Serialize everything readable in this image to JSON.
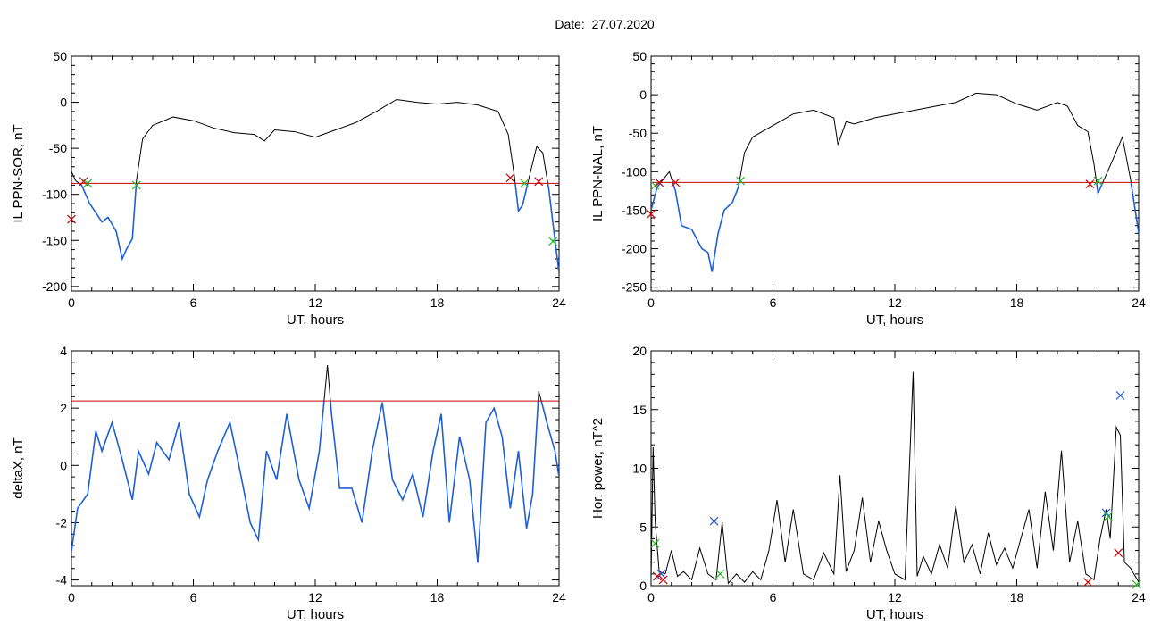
{
  "header": {
    "date_label": "Date:  27.07.2020"
  },
  "colors": {
    "data": "#000000",
    "threshold": "#cc0000",
    "below_threshold": "#1f5fd6",
    "marker_red": "#cc0000",
    "marker_green": "#22bb22",
    "marker_blue": "#1f5fd6"
  },
  "chart_data": [
    {
      "type": "line",
      "ylabel": "IL PPN-SOR, nT",
      "xlabel": "UT, hours",
      "xlim": [
        0,
        24
      ],
      "ylim": [
        -205,
        50
      ],
      "xticks": [
        0,
        6,
        12,
        18,
        24
      ],
      "yticks": [
        -200,
        -150,
        -100,
        -50,
        0,
        50
      ],
      "threshold": -88,
      "series": [
        {
          "color": "#000000",
          "x": [
            0,
            0.2,
            0.5,
            0.9,
            1.2,
            1.5,
            1.8,
            2.2,
            2.5,
            2.7,
            3.0,
            3.2,
            3.5,
            4.0,
            5.0,
            6.0,
            7.0,
            8.0,
            9.0,
            9.5,
            10.0,
            11.0,
            12.0,
            13.0,
            14.0,
            15.0,
            16.0,
            17.0,
            18.0,
            19.0,
            20.0,
            21.0,
            21.5,
            21.8,
            22.0,
            22.2,
            22.6,
            22.9,
            23.2,
            23.5,
            23.8,
            24.0
          ],
          "y": [
            -75,
            -85,
            -90,
            -110,
            -120,
            -130,
            -125,
            -140,
            -170,
            -160,
            -148,
            -85,
            -40,
            -25,
            -16,
            -20,
            -28,
            -33,
            -35,
            -42,
            -30,
            -32,
            -38,
            -30,
            -22,
            -10,
            3,
            0,
            -2,
            0,
            -3,
            -10,
            -35,
            -80,
            -118,
            -112,
            -75,
            -48,
            -55,
            -95,
            -150,
            -185
          ]
        }
      ],
      "markers": [
        {
          "x": 0.0,
          "y": -127,
          "color": "#cc0000"
        },
        {
          "x": 0.6,
          "y": -86,
          "color": "#cc0000"
        },
        {
          "x": 0.8,
          "y": -88,
          "color": "#22bb22"
        },
        {
          "x": 3.2,
          "y": -90,
          "color": "#22bb22"
        },
        {
          "x": 21.6,
          "y": -82,
          "color": "#cc0000"
        },
        {
          "x": 22.3,
          "y": -88,
          "color": "#22bb22"
        },
        {
          "x": 23.0,
          "y": -86,
          "color": "#cc0000"
        },
        {
          "x": 23.7,
          "y": -151,
          "color": "#22bb22"
        }
      ]
    },
    {
      "type": "line",
      "ylabel": "IL PPN-NAL, nT",
      "xlabel": "UT, hours",
      "xlim": [
        0,
        24
      ],
      "ylim": [
        -255,
        50
      ],
      "xticks": [
        0,
        6,
        12,
        18,
        24
      ],
      "yticks": [
        -250,
        -200,
        -150,
        -100,
        -50,
        0,
        50
      ],
      "threshold": -114,
      "series": [
        {
          "color": "#000000",
          "x": [
            0,
            0.3,
            0.6,
            0.9,
            1.2,
            1.5,
            2.0,
            2.5,
            2.8,
            3.0,
            3.3,
            3.6,
            4.0,
            4.3,
            4.6,
            5.0,
            6.0,
            7.0,
            8.0,
            9.0,
            9.2,
            9.6,
            10.0,
            11.0,
            12.0,
            13.0,
            14.0,
            15.0,
            16.0,
            17.0,
            18.0,
            19.0,
            20.0,
            20.5,
            21.0,
            21.5,
            21.8,
            22.0,
            22.3,
            22.8,
            23.2,
            23.6,
            24.0
          ],
          "y": [
            -150,
            -120,
            -110,
            -100,
            -125,
            -170,
            -175,
            -200,
            -205,
            -230,
            -180,
            -150,
            -140,
            -120,
            -75,
            -55,
            -40,
            -25,
            -20,
            -30,
            -65,
            -35,
            -38,
            -30,
            -25,
            -20,
            -15,
            -10,
            2,
            0,
            -12,
            -20,
            -10,
            -15,
            -40,
            -48,
            -90,
            -128,
            -110,
            -80,
            -55,
            -110,
            -180
          ]
        }
      ],
      "markers": [
        {
          "x": 0.0,
          "y": -155,
          "color": "#cc0000"
        },
        {
          "x": 0.2,
          "y": -118,
          "color": "#22bb22"
        },
        {
          "x": 0.4,
          "y": -114,
          "color": "#cc0000"
        },
        {
          "x": 1.2,
          "y": -114,
          "color": "#cc0000"
        },
        {
          "x": 4.4,
          "y": -112,
          "color": "#22bb22"
        },
        {
          "x": 21.6,
          "y": -116,
          "color": "#cc0000"
        },
        {
          "x": 22.0,
          "y": -112,
          "color": "#22bb22"
        }
      ]
    },
    {
      "type": "line",
      "ylabel": "deltaX, nT",
      "xlabel": "UT, hours",
      "xlim": [
        0,
        24
      ],
      "ylim": [
        -4.2,
        4
      ],
      "xticks": [
        0,
        6,
        12,
        18,
        24
      ],
      "yticks": [
        -4,
        -2,
        0,
        2,
        4
      ],
      "threshold": 2.25,
      "series": [
        {
          "color": "#000000",
          "x": [
            0,
            0.3,
            0.8,
            1.2,
            1.5,
            2.0,
            2.5,
            3.0,
            3.3,
            3.8,
            4.2,
            4.8,
            5.3,
            5.8,
            6.3,
            6.7,
            7.2,
            7.8,
            8.3,
            8.8,
            9.2,
            9.6,
            10.1,
            10.6,
            11.2,
            11.7,
            12.2,
            12.6,
            12.8,
            13.2,
            13.8,
            14.3,
            14.8,
            15.3,
            15.8,
            16.3,
            16.8,
            17.3,
            17.8,
            18.2,
            18.6,
            19.1,
            19.6,
            20.0,
            20.4,
            20.8,
            21.2,
            21.6,
            22.0,
            22.4,
            22.7,
            23.0,
            23.4,
            23.8,
            24.0
          ],
          "y": [
            -3.0,
            -1.5,
            -1.0,
            1.2,
            0.5,
            1.5,
            0.2,
            -1.2,
            0.5,
            -0.3,
            0.8,
            0.2,
            1.5,
            -1.0,
            -1.8,
            -0.5,
            0.5,
            1.5,
            -0.2,
            -2.0,
            -2.6,
            0.5,
            -0.5,
            1.8,
            -0.5,
            -1.5,
            0.5,
            3.5,
            1.8,
            -0.8,
            -0.8,
            -2.0,
            0.5,
            2.2,
            -0.5,
            -1.2,
            -0.3,
            -1.8,
            0.5,
            1.8,
            -2.0,
            1.0,
            -0.5,
            -3.4,
            1.5,
            2.0,
            1.0,
            -1.5,
            0.5,
            -2.2,
            -1.0,
            2.6,
            1.5,
            0.5,
            -0.4
          ]
        }
      ]
    },
    {
      "type": "line",
      "ylabel": "Hor. power, nT^2",
      "xlabel": "UT, hours",
      "xlim": [
        0,
        24
      ],
      "ylim": [
        0,
        20
      ],
      "xticks": [
        0,
        6,
        12,
        18,
        24
      ],
      "yticks": [
        0,
        5,
        10,
        15,
        20
      ],
      "series": [
        {
          "color": "#000000",
          "x": [
            0,
            0.1,
            0.2,
            0.4,
            0.7,
            1.0,
            1.3,
            1.6,
            2.0,
            2.4,
            2.8,
            3.2,
            3.5,
            3.8,
            4.2,
            4.6,
            5.0,
            5.4,
            5.8,
            6.2,
            6.6,
            7.0,
            7.5,
            8.0,
            8.5,
            9.0,
            9.3,
            9.6,
            10.0,
            10.4,
            10.8,
            11.2,
            11.6,
            12.0,
            12.5,
            12.9,
            13.1,
            13.4,
            13.8,
            14.2,
            14.6,
            15.0,
            15.4,
            15.8,
            16.2,
            16.6,
            17.0,
            17.4,
            17.8,
            18.2,
            18.6,
            19.0,
            19.4,
            19.8,
            20.2,
            20.6,
            21.0,
            21.4,
            21.8,
            22.1,
            22.4,
            22.6,
            22.9,
            23.1,
            23.3,
            23.6,
            24.0
          ],
          "y": [
            0.5,
            11.8,
            5.5,
            1.2,
            1.0,
            3.0,
            0.8,
            1.2,
            0.5,
            3.2,
            1.0,
            0.5,
            5.4,
            0.2,
            1.0,
            0.3,
            1.2,
            0.5,
            3.0,
            7.3,
            2.0,
            6.5,
            1.0,
            0.5,
            2.8,
            1.0,
            9.4,
            1.2,
            3.0,
            7.5,
            2.0,
            5.5,
            3.0,
            1.0,
            0.5,
            18.2,
            0.8,
            2.5,
            1.0,
            3.5,
            1.5,
            6.8,
            2.0,
            3.5,
            1.0,
            4.5,
            1.8,
            3.2,
            1.5,
            4.0,
            6.5,
            1.5,
            8.0,
            3.0,
            11.5,
            2.0,
            5.5,
            1.0,
            0.5,
            4.0,
            6.5,
            4.0,
            13.5,
            12.8,
            2.0,
            1.5,
            0.3
          ]
        }
      ],
      "markers": [
        {
          "x": 0.2,
          "y": 3.6,
          "color": "#22bb22"
        },
        {
          "x": 0.3,
          "y": 0.8,
          "color": "#cc0000"
        },
        {
          "x": 0.5,
          "y": 1.0,
          "color": "#1f5fd6"
        },
        {
          "x": 0.6,
          "y": 0.5,
          "color": "#cc0000"
        },
        {
          "x": 3.1,
          "y": 5.5,
          "color": "#1f5fd6"
        },
        {
          "x": 3.4,
          "y": 1.0,
          "color": "#22bb22"
        },
        {
          "x": 21.5,
          "y": 0.3,
          "color": "#cc0000"
        },
        {
          "x": 22.4,
          "y": 6.2,
          "color": "#1f5fd6"
        },
        {
          "x": 22.5,
          "y": 5.9,
          "color": "#22bb22"
        },
        {
          "x": 23.0,
          "y": 2.8,
          "color": "#cc0000"
        },
        {
          "x": 23.1,
          "y": 16.2,
          "color": "#1f5fd6"
        },
        {
          "x": 23.9,
          "y": 0.1,
          "color": "#22bb22"
        }
      ]
    }
  ]
}
